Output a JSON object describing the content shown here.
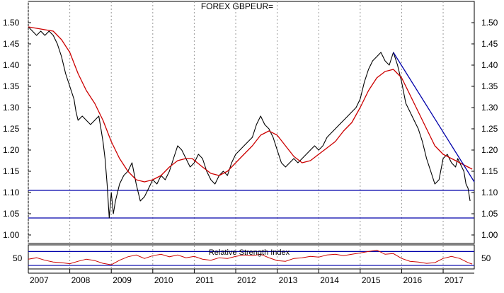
{
  "chart_data": [
    {
      "type": "line",
      "title": "FOREX GBPEUR=",
      "x_ticks": [
        "2007",
        "2008",
        "2009",
        "2010",
        "2011",
        "2012",
        "2013",
        "2014",
        "2015",
        "2016",
        "2017"
      ],
      "y_ticks": [
        "1.00",
        "1.05",
        "1.10",
        "1.15",
        "1.20",
        "1.25",
        "1.30",
        "1.35",
        "1.40",
        "1.45",
        "1.50"
      ],
      "xlim": [
        2007.0,
        2017.75
      ],
      "ylim": [
        0.98,
        1.53
      ],
      "grid": "vertical-dashed",
      "series": [
        {
          "color": "#000000",
          "values": [
            [
              2007.0,
              1.49
            ],
            [
              2007.1,
              1.48
            ],
            [
              2007.2,
              1.47
            ],
            [
              2007.3,
              1.48
            ],
            [
              2007.4,
              1.47
            ],
            [
              2007.5,
              1.48
            ],
            [
              2007.6,
              1.47
            ],
            [
              2007.7,
              1.45
            ],
            [
              2007.8,
              1.42
            ],
            [
              2007.9,
              1.38
            ],
            [
              2008.0,
              1.35
            ],
            [
              2008.1,
              1.32
            ],
            [
              2008.15,
              1.29
            ],
            [
              2008.2,
              1.27
            ],
            [
              2008.3,
              1.28
            ],
            [
              2008.4,
              1.27
            ],
            [
              2008.5,
              1.26
            ],
            [
              2008.6,
              1.27
            ],
            [
              2008.7,
              1.28
            ],
            [
              2008.75,
              1.25
            ],
            [
              2008.8,
              1.22
            ],
            [
              2008.85,
              1.18
            ],
            [
              2008.9,
              1.12
            ],
            [
              2008.95,
              1.04
            ],
            [
              2009.0,
              1.1
            ],
            [
              2009.05,
              1.05
            ],
            [
              2009.1,
              1.08
            ],
            [
              2009.2,
              1.12
            ],
            [
              2009.3,
              1.14
            ],
            [
              2009.4,
              1.15
            ],
            [
              2009.5,
              1.17
            ],
            [
              2009.6,
              1.12
            ],
            [
              2009.7,
              1.08
            ],
            [
              2009.8,
              1.09
            ],
            [
              2009.9,
              1.11
            ],
            [
              2010.0,
              1.13
            ],
            [
              2010.1,
              1.12
            ],
            [
              2010.2,
              1.14
            ],
            [
              2010.3,
              1.13
            ],
            [
              2010.4,
              1.15
            ],
            [
              2010.5,
              1.18
            ],
            [
              2010.6,
              1.21
            ],
            [
              2010.7,
              1.2
            ],
            [
              2010.8,
              1.18
            ],
            [
              2010.9,
              1.16
            ],
            [
              2011.0,
              1.17
            ],
            [
              2011.1,
              1.19
            ],
            [
              2011.2,
              1.18
            ],
            [
              2011.3,
              1.15
            ],
            [
              2011.4,
              1.13
            ],
            [
              2011.5,
              1.12
            ],
            [
              2011.6,
              1.14
            ],
            [
              2011.7,
              1.15
            ],
            [
              2011.8,
              1.14
            ],
            [
              2011.9,
              1.17
            ],
            [
              2012.0,
              1.19
            ],
            [
              2012.1,
              1.2
            ],
            [
              2012.2,
              1.21
            ],
            [
              2012.3,
              1.22
            ],
            [
              2012.4,
              1.23
            ],
            [
              2012.5,
              1.26
            ],
            [
              2012.6,
              1.28
            ],
            [
              2012.7,
              1.26
            ],
            [
              2012.8,
              1.25
            ],
            [
              2012.9,
              1.23
            ],
            [
              2013.0,
              1.2
            ],
            [
              2013.1,
              1.17
            ],
            [
              2013.2,
              1.16
            ],
            [
              2013.3,
              1.17
            ],
            [
              2013.4,
              1.18
            ],
            [
              2013.5,
              1.17
            ],
            [
              2013.6,
              1.18
            ],
            [
              2013.7,
              1.19
            ],
            [
              2013.8,
              1.2
            ],
            [
              2013.9,
              1.21
            ],
            [
              2014.0,
              1.2
            ],
            [
              2014.1,
              1.21
            ],
            [
              2014.2,
              1.23
            ],
            [
              2014.3,
              1.24
            ],
            [
              2014.4,
              1.25
            ],
            [
              2014.5,
              1.26
            ],
            [
              2014.6,
              1.27
            ],
            [
              2014.7,
              1.28
            ],
            [
              2014.8,
              1.29
            ],
            [
              2014.9,
              1.3
            ],
            [
              2015.0,
              1.32
            ],
            [
              2015.1,
              1.36
            ],
            [
              2015.2,
              1.39
            ],
            [
              2015.3,
              1.41
            ],
            [
              2015.4,
              1.42
            ],
            [
              2015.5,
              1.43
            ],
            [
              2015.6,
              1.41
            ],
            [
              2015.7,
              1.4
            ],
            [
              2015.8,
              1.43
            ],
            [
              2015.9,
              1.4
            ],
            [
              2016.0,
              1.36
            ],
            [
              2016.1,
              1.31
            ],
            [
              2016.2,
              1.29
            ],
            [
              2016.3,
              1.27
            ],
            [
              2016.4,
              1.25
            ],
            [
              2016.5,
              1.22
            ],
            [
              2016.6,
              1.18
            ],
            [
              2016.7,
              1.15
            ],
            [
              2016.8,
              1.12
            ],
            [
              2016.9,
              1.13
            ],
            [
              2017.0,
              1.18
            ],
            [
              2017.1,
              1.19
            ],
            [
              2017.2,
              1.17
            ],
            [
              2017.3,
              1.16
            ],
            [
              2017.35,
              1.18
            ],
            [
              2017.4,
              1.17
            ],
            [
              2017.5,
              1.15
            ],
            [
              2017.55,
              1.12
            ],
            [
              2017.6,
              1.11
            ],
            [
              2017.65,
              1.08
            ]
          ]
        },
        {
          "color": "#cc0000",
          "values": [
            [
              2007.0,
              1.49
            ],
            [
              2007.3,
              1.485
            ],
            [
              2007.6,
              1.48
            ],
            [
              2007.8,
              1.46
            ],
            [
              2008.0,
              1.43
            ],
            [
              2008.2,
              1.38
            ],
            [
              2008.4,
              1.34
            ],
            [
              2008.6,
              1.31
            ],
            [
              2008.8,
              1.27
            ],
            [
              2009.0,
              1.22
            ],
            [
              2009.2,
              1.18
            ],
            [
              2009.4,
              1.15
            ],
            [
              2009.6,
              1.13
            ],
            [
              2009.8,
              1.125
            ],
            [
              2010.0,
              1.13
            ],
            [
              2010.2,
              1.14
            ],
            [
              2010.4,
              1.16
            ],
            [
              2010.6,
              1.175
            ],
            [
              2010.8,
              1.18
            ],
            [
              2010.95,
              1.18
            ],
            [
              2011.2,
              1.16
            ],
            [
              2011.4,
              1.145
            ],
            [
              2011.6,
              1.14
            ],
            [
              2011.8,
              1.15
            ],
            [
              2012.0,
              1.17
            ],
            [
              2012.2,
              1.19
            ],
            [
              2012.4,
              1.21
            ],
            [
              2012.6,
              1.235
            ],
            [
              2012.8,
              1.245
            ],
            [
              2013.0,
              1.235
            ],
            [
              2013.2,
              1.21
            ],
            [
              2013.4,
              1.185
            ],
            [
              2013.6,
              1.17
            ],
            [
              2013.8,
              1.175
            ],
            [
              2014.0,
              1.19
            ],
            [
              2014.2,
              1.205
            ],
            [
              2014.4,
              1.22
            ],
            [
              2014.6,
              1.245
            ],
            [
              2014.8,
              1.265
            ],
            [
              2015.0,
              1.3
            ],
            [
              2015.2,
              1.34
            ],
            [
              2015.4,
              1.37
            ],
            [
              2015.6,
              1.385
            ],
            [
              2015.8,
              1.39
            ],
            [
              2016.0,
              1.37
            ],
            [
              2016.2,
              1.33
            ],
            [
              2016.4,
              1.29
            ],
            [
              2016.6,
              1.25
            ],
            [
              2016.8,
              1.21
            ],
            [
              2017.0,
              1.19
            ],
            [
              2017.2,
              1.18
            ],
            [
              2017.4,
              1.17
            ],
            [
              2017.6,
              1.16
            ],
            [
              2017.7,
              1.155
            ]
          ]
        },
        {
          "color": "#0000aa",
          "values": [
            [
              2015.8,
              1.43
            ],
            [
              2017.75,
              1.125
            ]
          ]
        }
      ],
      "horizontal_lines": [
        {
          "y": 1.105,
          "color": "#0000aa"
        },
        {
          "y": 1.04,
          "color": "#0000aa"
        }
      ]
    },
    {
      "type": "line",
      "title": "Relative Strength Index",
      "y_ticks": [
        "50"
      ],
      "xlim": [
        2007.0,
        2017.75
      ],
      "ylim": [
        20,
        85
      ],
      "horizontal_lines": [
        {
          "y": 70,
          "color": "#0000aa"
        },
        {
          "y": 30,
          "color": "#0000aa"
        }
      ],
      "series": [
        {
          "color": "#cc0000",
          "values": [
            [
              2007.0,
              48
            ],
            [
              2007.2,
              52
            ],
            [
              2007.4,
              45
            ],
            [
              2007.6,
              40
            ],
            [
              2007.8,
              38
            ],
            [
              2008.0,
              35
            ],
            [
              2008.2,
              42
            ],
            [
              2008.4,
              48
            ],
            [
              2008.6,
              44
            ],
            [
              2008.8,
              36
            ],
            [
              2009.0,
              32
            ],
            [
              2009.2,
              45
            ],
            [
              2009.4,
              55
            ],
            [
              2009.6,
              60
            ],
            [
              2009.8,
              50
            ],
            [
              2010.0,
              58
            ],
            [
              2010.2,
              62
            ],
            [
              2010.4,
              55
            ],
            [
              2010.6,
              60
            ],
            [
              2010.8,
              52
            ],
            [
              2011.0,
              56
            ],
            [
              2011.2,
              48
            ],
            [
              2011.4,
              45
            ],
            [
              2011.6,
              52
            ],
            [
              2011.8,
              50
            ],
            [
              2012.0,
              56
            ],
            [
              2012.2,
              60
            ],
            [
              2012.4,
              58
            ],
            [
              2012.6,
              62
            ],
            [
              2012.8,
              52
            ],
            [
              2013.0,
              44
            ],
            [
              2013.2,
              42
            ],
            [
              2013.4,
              50
            ],
            [
              2013.6,
              52
            ],
            [
              2013.8,
              56
            ],
            [
              2014.0,
              54
            ],
            [
              2014.2,
              60
            ],
            [
              2014.4,
              62
            ],
            [
              2014.6,
              58
            ],
            [
              2014.8,
              62
            ],
            [
              2015.0,
              66
            ],
            [
              2015.2,
              70
            ],
            [
              2015.4,
              74
            ],
            [
              2015.6,
              62
            ],
            [
              2015.8,
              64
            ],
            [
              2016.0,
              50
            ],
            [
              2016.2,
              42
            ],
            [
              2016.4,
              40
            ],
            [
              2016.6,
              36
            ],
            [
              2016.8,
              38
            ],
            [
              2017.0,
              50
            ],
            [
              2017.2,
              56
            ],
            [
              2017.4,
              50
            ],
            [
              2017.6,
              38
            ],
            [
              2017.7,
              34
            ]
          ]
        }
      ]
    }
  ]
}
